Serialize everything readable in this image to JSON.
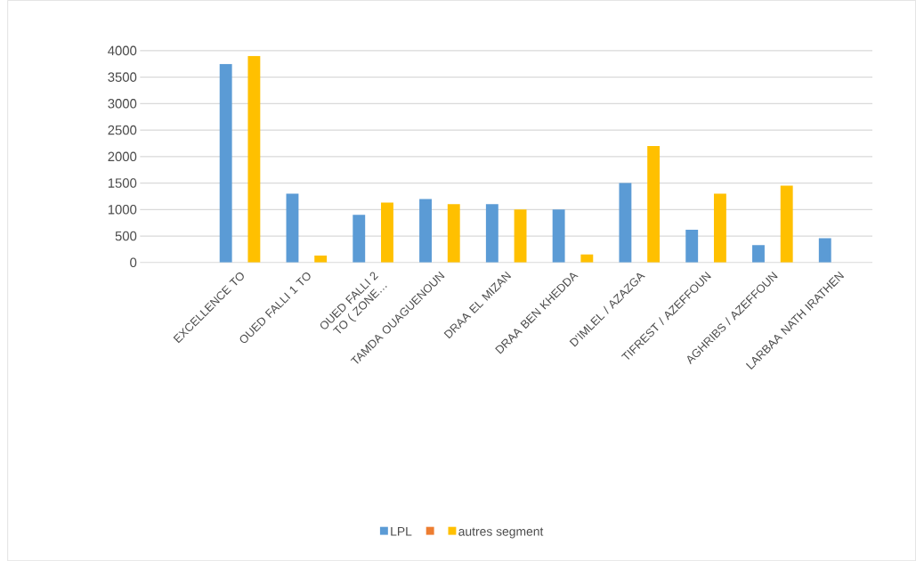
{
  "chart_data": {
    "type": "bar",
    "categories": [
      null,
      "EXCELLENCE TO",
      "OUED FALLI 1 TO",
      "OUED FALLI 2 TO ( ZONE…",
      "TAMDA OUAGUENOUN",
      "DRAA EL MIZAN",
      "DRAA BEN KHEDDA",
      "D'IMLEL / AZAZGA",
      "TIFREST / AZEFFOUN",
      "AGHRIBS / AZEFFOUN",
      "LARBAA NATH IRATHEN"
    ],
    "series": [
      {
        "name": "LPL",
        "color": "#5b9bd5",
        "values": [
          0,
          3750,
          1300,
          900,
          1200,
          1100,
          1000,
          1500,
          620,
          330,
          460
        ]
      },
      {
        "color": "#ed7d31",
        "values": [
          0,
          0,
          0,
          0,
          0,
          0,
          0,
          0,
          0,
          0,
          0
        ]
      },
      {
        "name": "autres segment",
        "color": "#ffc000",
        "values": [
          null,
          3900,
          130,
          1130,
          1100,
          1000,
          150,
          2200,
          1300,
          1450,
          0
        ]
      }
    ],
    "ylim": [
      0,
      4000
    ],
    "yticks": [
      0,
      500,
      1000,
      1500,
      2000,
      2500,
      3000,
      3500,
      4000
    ],
    "grid": "y",
    "legend": "bottom"
  }
}
